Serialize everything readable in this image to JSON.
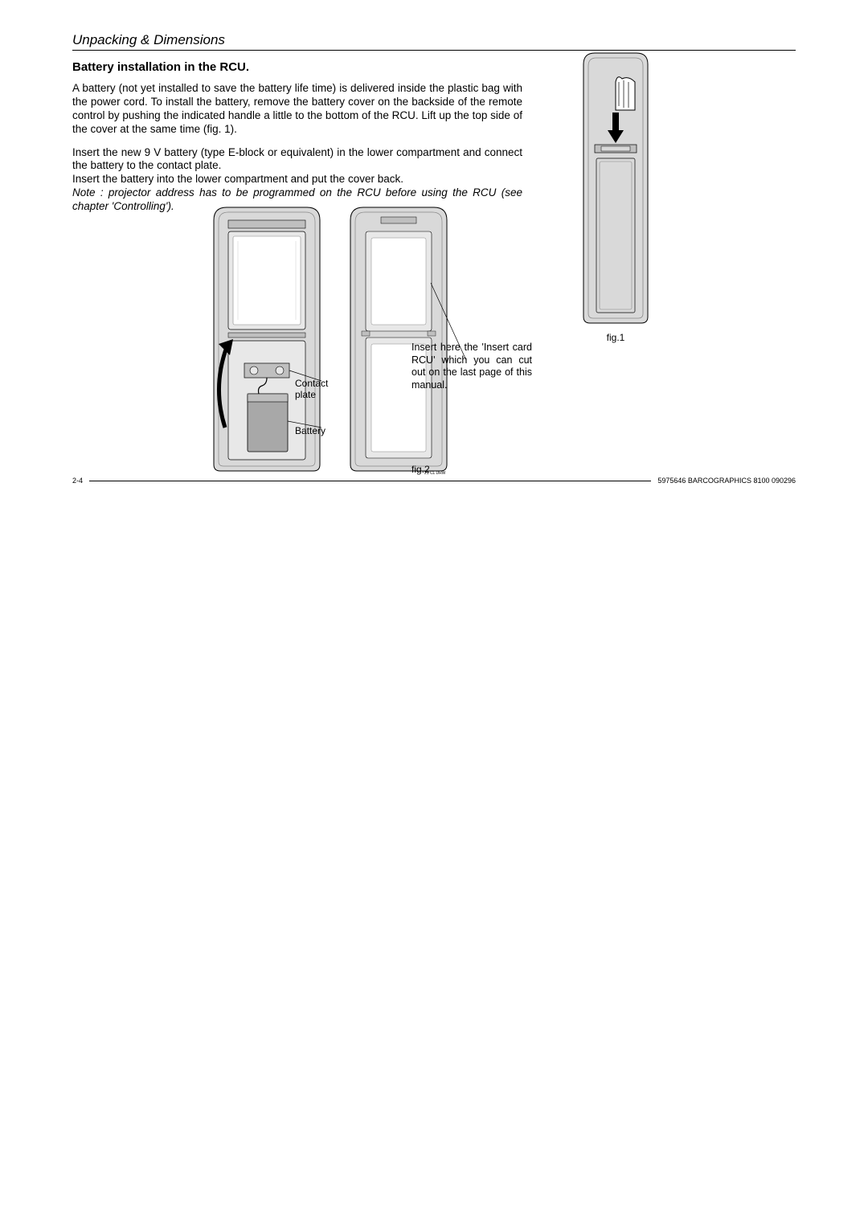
{
  "section_header": "Unpacking & Dimensions",
  "sub_heading": "Battery installation in the RCU.",
  "para1": "A battery (not yet installed to save the battery life time) is delivered inside the plastic bag with the power cord.  To install the battery, remove the battery cover on the backside of the remote control by pushing the indicated handle a little to the bottom of the RCU.  Lift up the top side of the cover at the same time (fig. 1).",
  "para2a": "Insert the new 9 V battery (type E-block or equivalent) in the lower compartment and connect the battery to the contact plate.",
  "para2b": "Insert the battery into the lower compartment and put the cover back.",
  "note": "Note : projector address has to be programmed on the RCU before using the RCU (see chapter 'Controlling').",
  "fig1_caption": "fig.1",
  "fig2_caption": "fig.2",
  "label_contact": "Contact plate",
  "label_battery": "Battery",
  "insert_card_text": "Insert here the 'Insert card RCU' which you can cut out on the last page of this manual.",
  "footer_left": "2-4",
  "footer_right": "5975646 BARCOGRAPHICS 8100 090296",
  "colors": {
    "background": "#ffffff",
    "text": "#000000",
    "diagram_fill_light": "#d9d9d9",
    "diagram_fill_mid": "#bfbfbf",
    "diagram_fill_dark": "#a8a8a8",
    "diagram_stroke": "#000000"
  }
}
